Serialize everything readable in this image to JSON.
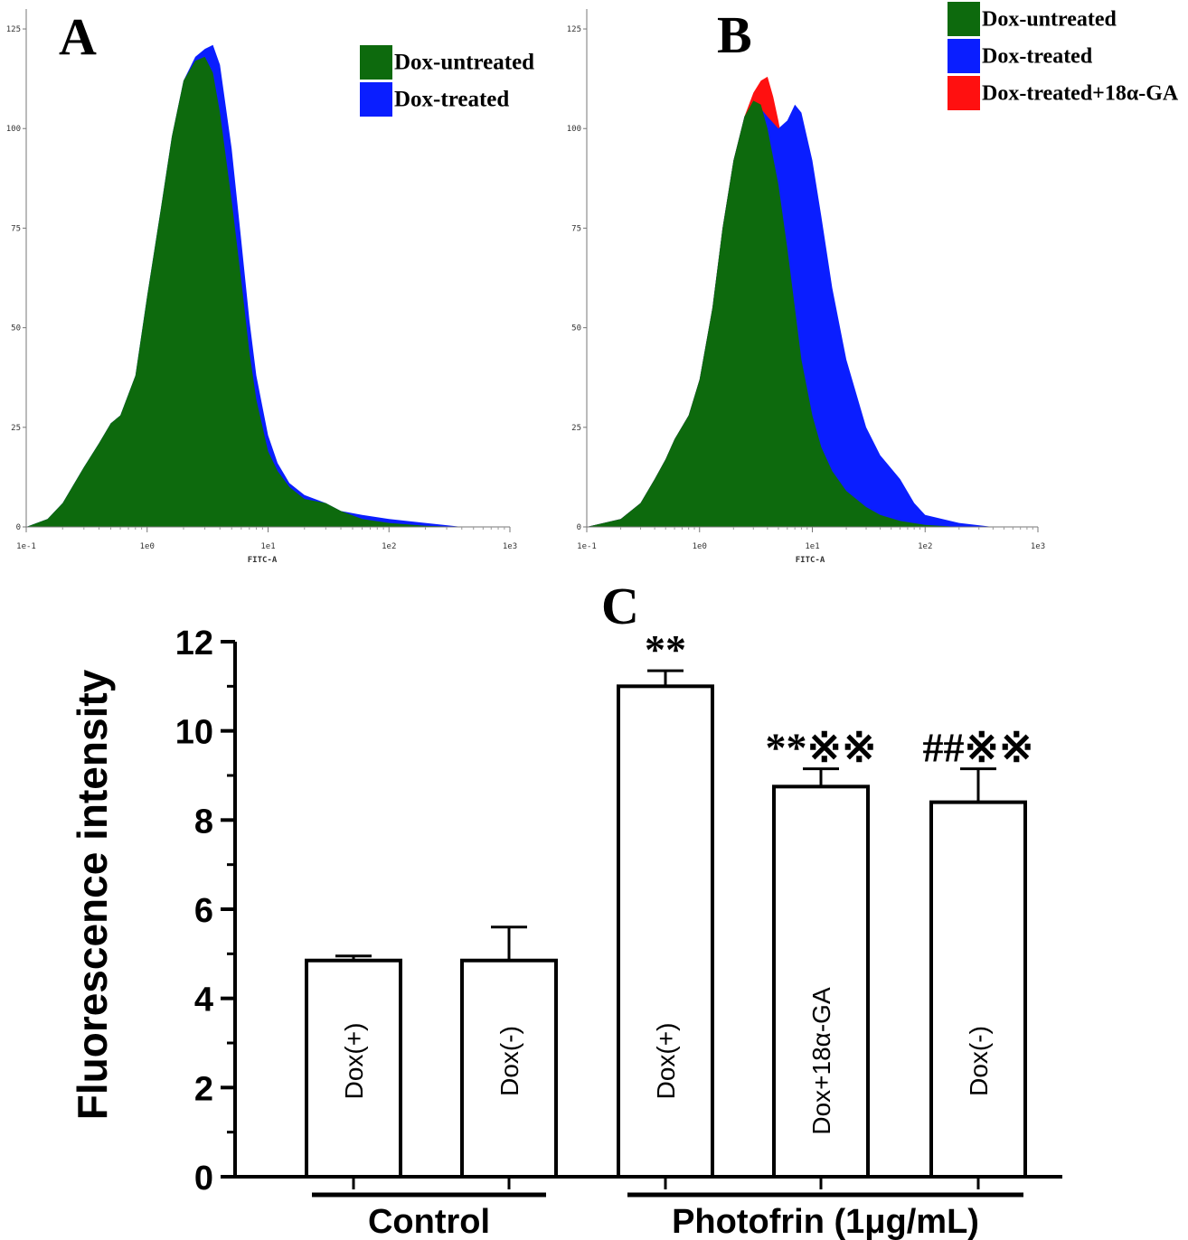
{
  "colors": {
    "untreated": "#0d6a0d",
    "treated": "#0a1eff",
    "treated_ga": "#ff1010"
  },
  "panels": {
    "A": {
      "letter": "A"
    },
    "B": {
      "letter": "B"
    },
    "C": {
      "letter": "C"
    }
  },
  "chart_data": [
    {
      "panel": "A",
      "type": "area",
      "xlabel": "FITC-A",
      "x_scale": "log",
      "xlim": [
        0.1,
        1000
      ],
      "ylim": [
        0,
        130
      ],
      "x_ticks": [
        "1e-1",
        "1e0",
        "1e1",
        "1e2",
        "1e3"
      ],
      "y_ticks": [
        "0",
        "25",
        "50",
        "75",
        "100",
        "125"
      ],
      "legend": "top-right",
      "series": [
        {
          "name": "Dox-untreated",
          "color": "#0d6a0d",
          "x": [
            0.1,
            0.15,
            0.2,
            0.3,
            0.4,
            0.5,
            0.6,
            0.8,
            1.0,
            1.3,
            1.6,
            2.0,
            2.5,
            3.0,
            3.5,
            4.0,
            5.0,
            6.0,
            7.0,
            8.0,
            10,
            12,
            15,
            20,
            30,
            40,
            60,
            100,
            200,
            400
          ],
          "y": [
            0,
            2,
            6,
            15,
            21,
            26,
            28,
            38,
            58,
            80,
            98,
            112,
            117,
            118,
            114,
            104,
            82,
            62,
            44,
            32,
            19,
            14,
            10,
            7,
            6,
            4,
            2,
            1,
            0.3,
            0
          ]
        },
        {
          "name": "Dox-treated",
          "color": "#0a1eff",
          "x": [
            0.1,
            0.15,
            0.2,
            0.3,
            0.4,
            0.5,
            0.6,
            0.8,
            1.0,
            1.3,
            1.6,
            2.0,
            2.5,
            3.0,
            3.5,
            4.0,
            5.0,
            6.0,
            7.0,
            8.0,
            10,
            12,
            15,
            20,
            30,
            40,
            60,
            100,
            200,
            400
          ],
          "y": [
            0,
            2,
            6,
            15,
            21,
            26,
            28,
            38,
            58,
            80,
            98,
            112,
            118,
            120,
            121,
            116,
            95,
            72,
            52,
            38,
            23,
            16,
            11,
            8,
            6,
            4,
            3,
            2,
            1,
            0
          ]
        }
      ]
    },
    {
      "panel": "B",
      "type": "area",
      "xlabel": "FITC-A",
      "x_scale": "log",
      "xlim": [
        0.1,
        1000
      ],
      "ylim": [
        0,
        130
      ],
      "x_ticks": [
        "1e-1",
        "1e0",
        "1e1",
        "1e2",
        "1e3"
      ],
      "y_ticks": [
        "0",
        "25",
        "50",
        "75",
        "100",
        "125"
      ],
      "legend": "top-right",
      "series": [
        {
          "name": "Dox-untreated",
          "color": "#0d6a0d",
          "x": [
            0.1,
            0.2,
            0.3,
            0.4,
            0.5,
            0.6,
            0.8,
            1.0,
            1.3,
            1.6,
            2.0,
            2.5,
            3.0,
            3.5,
            4.0,
            5.0,
            6.0,
            7.0,
            8.0,
            10,
            12,
            15,
            20,
            30,
            40,
            60,
            100,
            200
          ],
          "y": [
            0,
            2,
            6,
            12,
            17,
            22,
            28,
            37,
            55,
            75,
            92,
            103,
            107,
            106,
            100,
            86,
            70,
            55,
            42,
            28,
            20,
            14,
            9,
            5,
            3,
            1.5,
            0.5,
            0
          ]
        },
        {
          "name": "Dox-treated",
          "color": "#0a1eff",
          "x": [
            0.1,
            0.2,
            0.3,
            0.4,
            0.5,
            0.6,
            0.8,
            1.0,
            1.3,
            1.6,
            2.0,
            2.5,
            3.0,
            3.5,
            4.0,
            5.0,
            6.0,
            7.0,
            8.0,
            10,
            12,
            15,
            20,
            30,
            40,
            60,
            80,
            100,
            200,
            400
          ],
          "y": [
            0,
            2,
            6,
            12,
            17,
            22,
            28,
            37,
            55,
            75,
            92,
            103,
            106,
            105,
            103,
            100,
            102,
            106,
            104,
            92,
            78,
            60,
            42,
            25,
            18,
            12,
            6,
            3,
            1,
            0
          ]
        },
        {
          "name": "Dox-treated+18α-GA",
          "color": "#ff1010",
          "x": [
            0.1,
            0.2,
            0.3,
            0.4,
            0.5,
            0.6,
            0.8,
            1.0,
            1.3,
            1.6,
            2.0,
            2.5,
            3.0,
            3.5,
            4.0,
            4.5,
            5.0,
            6.0,
            7.0,
            8.0,
            10,
            12,
            15,
            20,
            30,
            40,
            60,
            100,
            200
          ],
          "y": [
            0,
            2,
            6,
            12,
            17,
            22,
            28,
            37,
            55,
            75,
            92,
            103,
            109,
            112,
            113,
            108,
            102,
            90,
            76,
            62,
            42,
            30,
            20,
            12,
            6,
            4,
            2,
            1,
            0
          ]
        }
      ]
    },
    {
      "panel": "C",
      "type": "bar",
      "ylabel": "Fluorescence intensity",
      "ylim": [
        0,
        12
      ],
      "y_ticks": [
        "0",
        "2",
        "4",
        "6",
        "8",
        "10",
        "12"
      ],
      "categories": [
        "Dox(+)",
        "Dox(-)",
        "Dox(+)",
        "Dox+18α-GA",
        "Dox(-)"
      ],
      "values": [
        4.85,
        4.85,
        11.0,
        8.75,
        8.4
      ],
      "errors": [
        0.1,
        0.75,
        0.35,
        0.4,
        0.75
      ],
      "annotations": [
        "",
        "",
        "**",
        "**※※",
        "##※※"
      ],
      "groups": [
        {
          "label": "Control",
          "bars": [
            0,
            1
          ]
        },
        {
          "label": "Photofrin (1μg/mL)",
          "bars": [
            2,
            3,
            4
          ]
        }
      ]
    }
  ]
}
